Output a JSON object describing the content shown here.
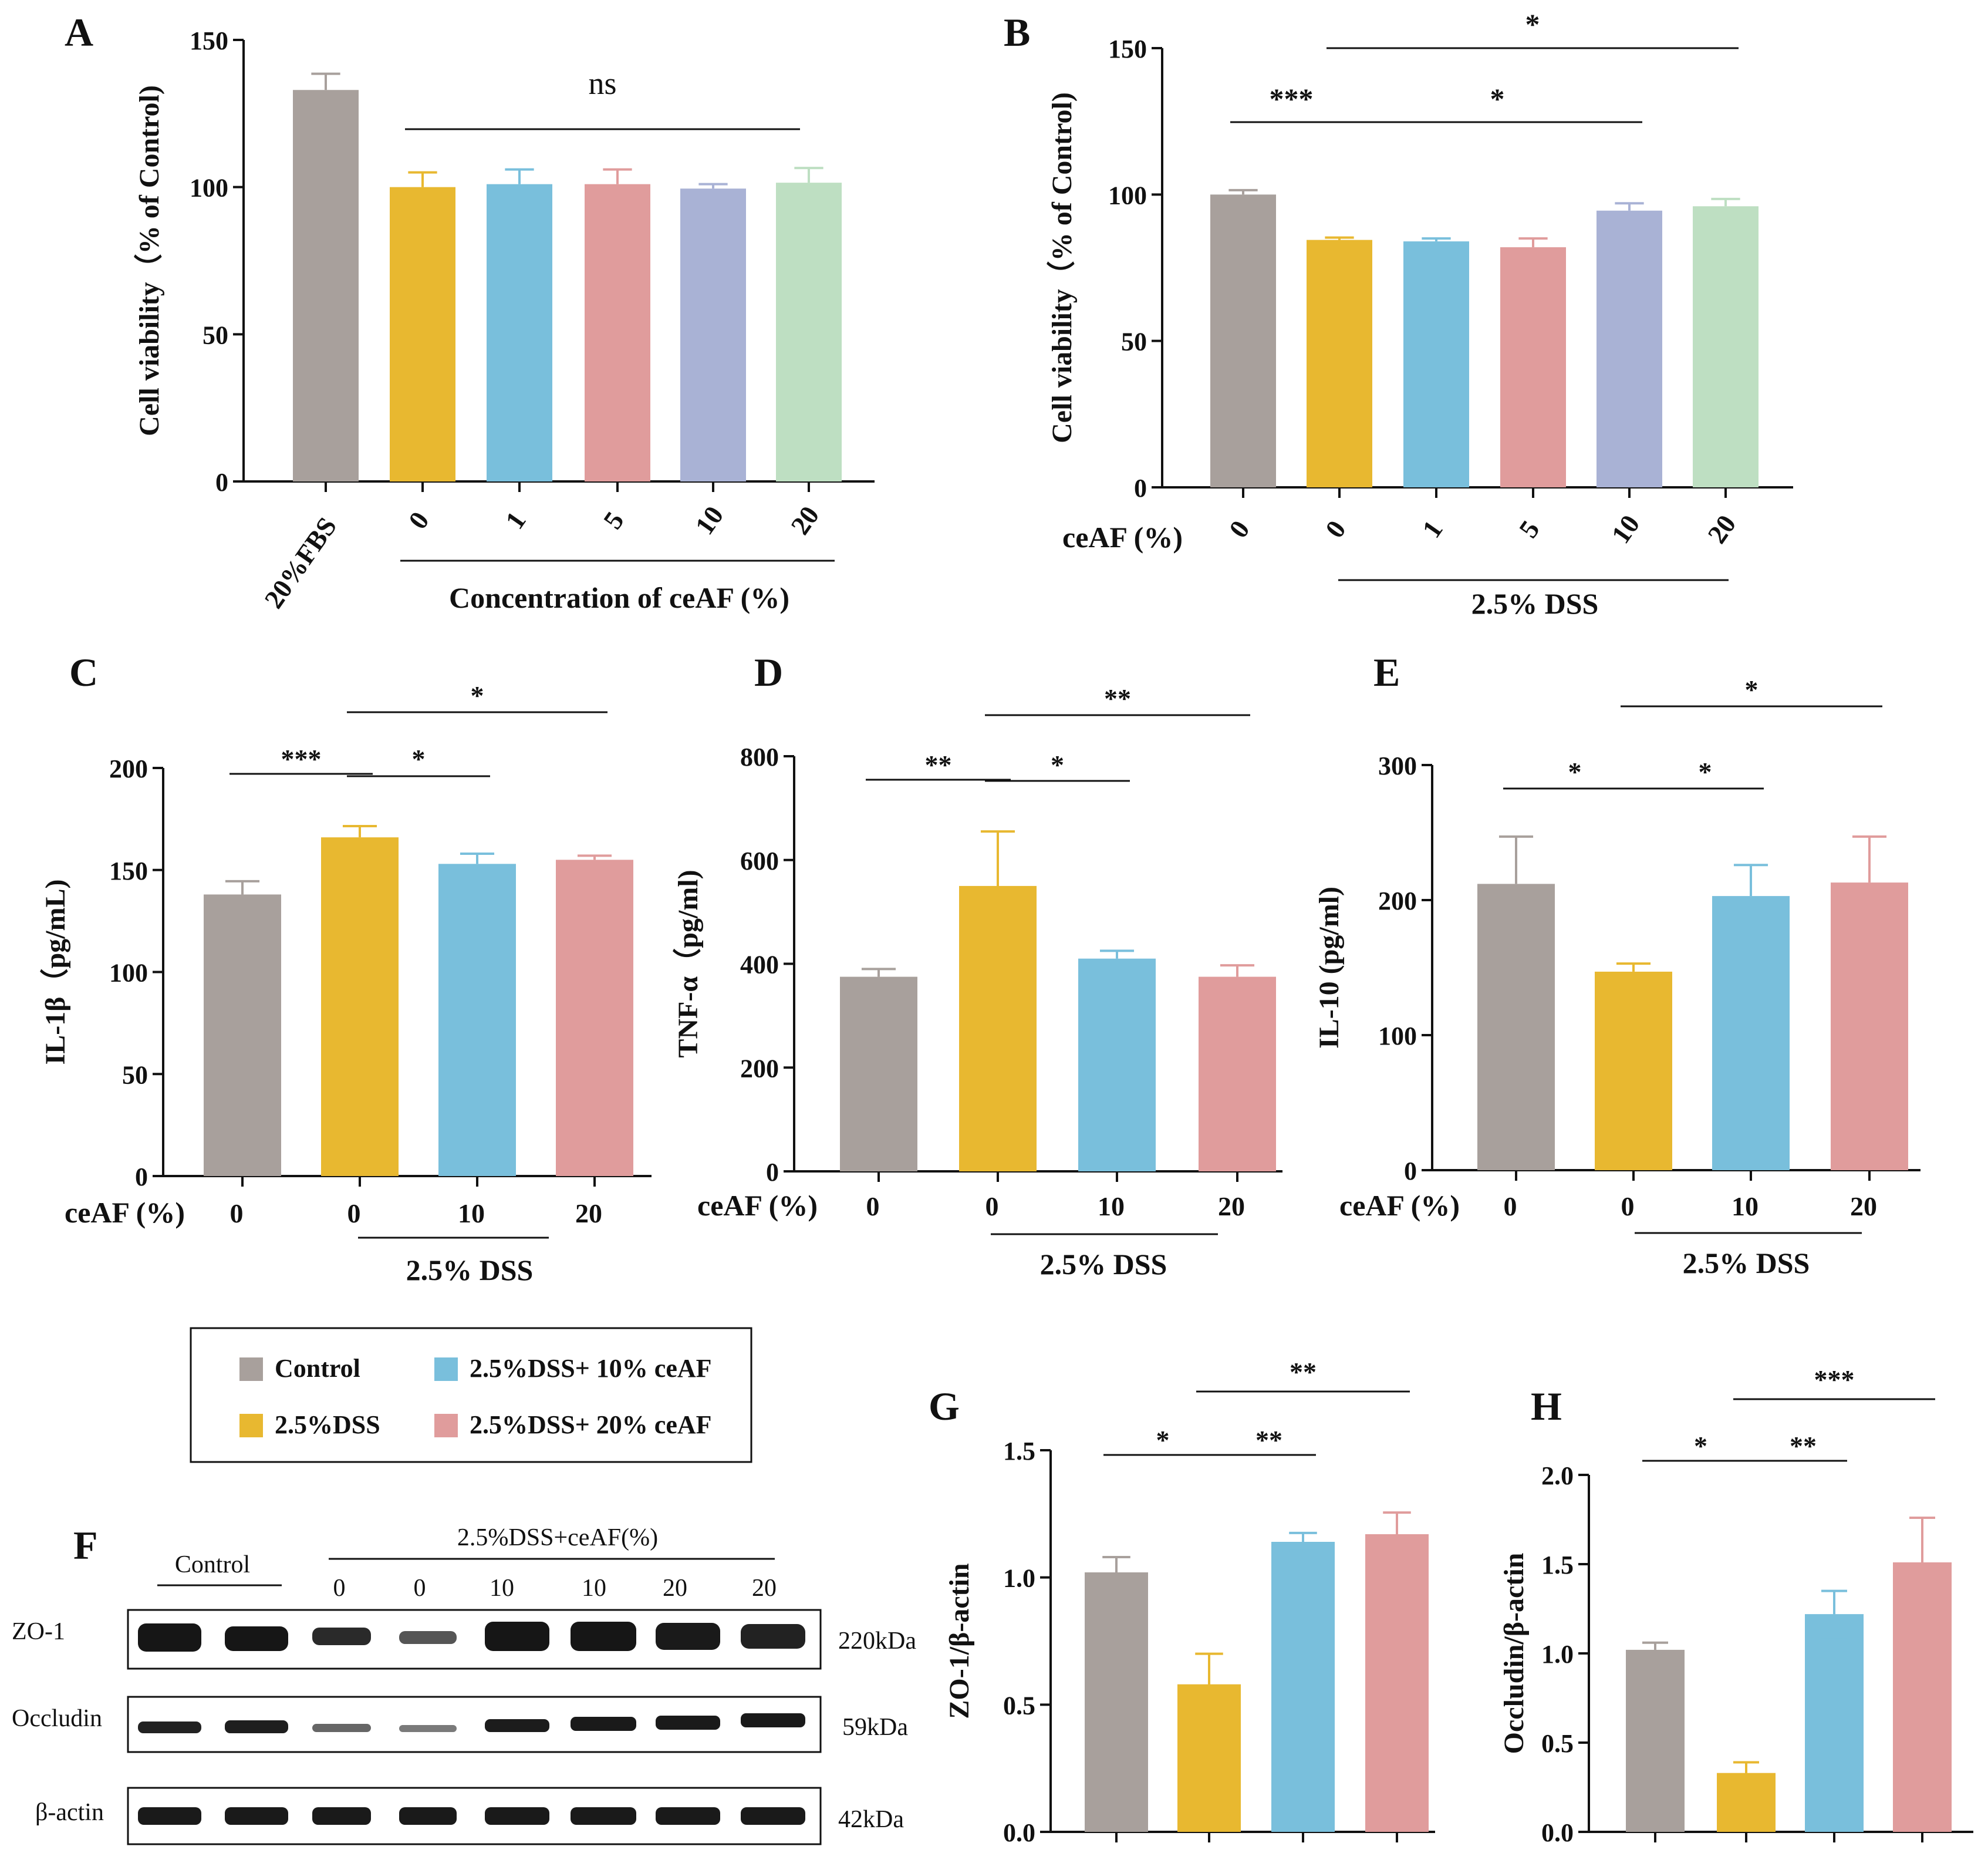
{
  "figure_description": "Multi-panel bar chart figure",
  "colors": {
    "grey": "#a8a09c",
    "yellow": "#e8b830",
    "blue": "#79bfdc",
    "pink": "#e09c9c",
    "purple": "#a9b2d5",
    "green": "#bedfc2",
    "axis": "#111111"
  },
  "legend": {
    "items": [
      {
        "label": "Control",
        "color": "#a8a09c"
      },
      {
        "label": "2.5%DSS+ 10% ceAF",
        "color": "#79bfdc"
      },
      {
        "label": "2.5%DSS",
        "color": "#e8b830"
      },
      {
        "label": "2.5%DSS+ 20% ceAF",
        "color": "#e09c9c"
      }
    ]
  },
  "blot": {
    "panel_letter": "F",
    "control_label": "Control",
    "treatment_label": "2.5%DSS+ceAF(%)",
    "lane_labels": [
      "0",
      "0",
      "10",
      "10",
      "20",
      "20"
    ],
    "rows": [
      {
        "name": "ZO-1",
        "mw": "220kDa"
      },
      {
        "name": "Occludin",
        "mw": "59kDa"
      },
      {
        "name": "β-actin",
        "mw": "42kDa"
      }
    ]
  },
  "chart_data": [
    {
      "id": "A",
      "type": "bar",
      "panel_letter": "A",
      "ylabel": "Cell viability（% of Control)",
      "ylim": [
        0,
        150
      ],
      "yticks": [
        0,
        50,
        100,
        150
      ],
      "categories": [
        "20%FBS",
        "0",
        "1",
        "5",
        "10",
        "20"
      ],
      "values": [
        133,
        100,
        101,
        101,
        99.5,
        101.5
      ],
      "errors": [
        5.5,
        5,
        5,
        5,
        1.5,
        5
      ],
      "group_label": "Concentration of ceAF (%)",
      "significance": [
        {
          "from": 1,
          "to": 5,
          "label": "ns"
        }
      ]
    },
    {
      "id": "B",
      "type": "bar",
      "panel_letter": "B",
      "ylabel": "Cell viability（% of Control)",
      "ylim": [
        0,
        150
      ],
      "yticks": [
        0,
        50,
        100,
        150
      ],
      "x_prefix": "ceAF (%)",
      "categories": [
        "0",
        "0",
        "1",
        "5",
        "10",
        "20"
      ],
      "values": [
        100,
        84.5,
        84,
        82,
        94.5,
        96
      ],
      "errors": [
        1.5,
        0.8,
        1,
        3,
        2.5,
        2.5
      ],
      "group_label": "2.5% DSS",
      "significance": [
        {
          "from": 0,
          "to": 1,
          "label": "***"
        },
        {
          "from": 1,
          "to": 4,
          "label": "*"
        },
        {
          "from": 1,
          "to": 5,
          "label": "*"
        }
      ]
    },
    {
      "id": "C",
      "type": "bar",
      "panel_letter": "C",
      "ylabel": "IL-1β（pg/mL)",
      "ylim": [
        0,
        200
      ],
      "yticks": [
        0,
        50,
        100,
        150,
        200
      ],
      "x_prefix": "ceAF (%)",
      "categories": [
        "0",
        "0",
        "10",
        "20"
      ],
      "values": [
        138,
        166,
        153,
        155
      ],
      "errors": [
        6.5,
        5.5,
        5,
        2
      ],
      "group_label": "2.5% DSS",
      "significance": [
        {
          "from": 0,
          "to": 1,
          "label": "***"
        },
        {
          "from": 1,
          "to": 2,
          "label": "*"
        },
        {
          "from": 1,
          "to": 3,
          "label": "*"
        }
      ]
    },
    {
      "id": "D",
      "type": "bar",
      "panel_letter": "D",
      "ylabel": "TNF-α（pg/ml)",
      "ylim": [
        0,
        800
      ],
      "yticks": [
        0,
        200,
        400,
        600,
        800
      ],
      "x_prefix": "ceAF (%)",
      "categories": [
        "0",
        "0",
        "10",
        "20"
      ],
      "values": [
        375,
        550,
        410,
        375
      ],
      "errors": [
        15,
        105,
        15,
        22
      ],
      "group_label": "2.5% DSS",
      "significance": [
        {
          "from": 0,
          "to": 1,
          "label": "**"
        },
        {
          "from": 1,
          "to": 2,
          "label": "*"
        },
        {
          "from": 1,
          "to": 3,
          "label": "**"
        }
      ]
    },
    {
      "id": "E",
      "type": "bar",
      "panel_letter": "E",
      "ylabel": "IL-10 (pg/ml)",
      "ylim": [
        0,
        300
      ],
      "yticks": [
        0,
        100,
        200,
        300
      ],
      "x_prefix": "ceAF (%)",
      "categories": [
        "0",
        "0",
        "10",
        "20"
      ],
      "values": [
        212,
        147,
        203,
        213
      ],
      "errors": [
        35,
        6,
        23,
        34
      ],
      "group_label": "2.5% DSS",
      "significance": [
        {
          "from": 0,
          "to": 1,
          "label": "*"
        },
        {
          "from": 1,
          "to": 2,
          "label": "*"
        },
        {
          "from": 1,
          "to": 3,
          "label": "*"
        }
      ]
    },
    {
      "id": "G",
      "type": "bar",
      "panel_letter": "G",
      "ylabel": "ZO-1/β-actin",
      "ylim": [
        0,
        1.5
      ],
      "yticks": [
        0.0,
        0.5,
        1.0,
        1.5
      ],
      "categories": [
        "Control",
        "2.5%DSS",
        "2.5%DSS+ 10% ceAF",
        "2.5%DSS+ 20% ceAF"
      ],
      "values": [
        1.02,
        0.58,
        1.14,
        1.17
      ],
      "errors": [
        0.06,
        0.12,
        0.035,
        0.085
      ],
      "significance": [
        {
          "from": 0,
          "to": 1,
          "label": "*"
        },
        {
          "from": 1,
          "to": 2,
          "label": "**"
        },
        {
          "from": 1,
          "to": 3,
          "label": "**"
        }
      ]
    },
    {
      "id": "H",
      "type": "bar",
      "panel_letter": "H",
      "ylabel": "Occludin/β-actin",
      "ylim": [
        0,
        2.0
      ],
      "yticks": [
        0.0,
        0.5,
        1.0,
        1.5,
        2.0
      ],
      "categories": [
        "Control",
        "2.5%DSS",
        "2.5%DSS+ 10% ceAF",
        "2.5%DSS+ 20% ceAF"
      ],
      "values": [
        1.02,
        0.33,
        1.22,
        1.51
      ],
      "errors": [
        0.04,
        0.06,
        0.13,
        0.25
      ],
      "significance": [
        {
          "from": 0,
          "to": 1,
          "label": "*"
        },
        {
          "from": 1,
          "to": 2,
          "label": "**"
        },
        {
          "from": 1,
          "to": 3,
          "label": "***"
        }
      ]
    }
  ]
}
